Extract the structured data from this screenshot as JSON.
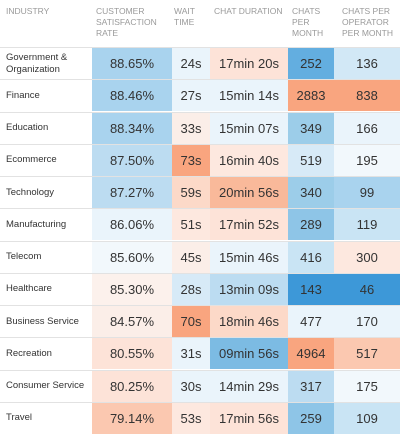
{
  "chart_data": {
    "type": "table",
    "columns": [
      "INDUSTRY",
      "CUSTOMER SATISFACTION RATE",
      "WAIT TIME",
      "CHAT DURATION",
      "CHATS PER MONTH",
      "CHATS PER OPERATOR PER MONTH"
    ],
    "rows": [
      {
        "industry": "Government & Organization",
        "satisfaction": "88.65%",
        "wait": "24s",
        "duration": "17min 20s",
        "chats": "252",
        "per_operator": "136"
      },
      {
        "industry": "Finance",
        "satisfaction": "88.46%",
        "wait": "27s",
        "duration": "15min 14s",
        "chats": "2883",
        "per_operator": "838"
      },
      {
        "industry": "Education",
        "satisfaction": "88.34%",
        "wait": "33s",
        "duration": "15min 07s",
        "chats": "349",
        "per_operator": "166"
      },
      {
        "industry": "Ecommerce",
        "satisfaction": "87.50%",
        "wait": "73s",
        "duration": "16min 40s",
        "chats": "519",
        "per_operator": "195"
      },
      {
        "industry": "Technology",
        "satisfaction": "87.27%",
        "wait": "59s",
        "duration": "20min 56s",
        "chats": "340",
        "per_operator": "99"
      },
      {
        "industry": "Manufacturing",
        "satisfaction": "86.06%",
        "wait": "51s",
        "duration": "17min 52s",
        "chats": "289",
        "per_operator": "119"
      },
      {
        "industry": "Telecom",
        "satisfaction": "85.60%",
        "wait": "45s",
        "duration": "15min 46s",
        "chats": "416",
        "per_operator": "300"
      },
      {
        "industry": "Healthcare",
        "satisfaction": "85.30%",
        "wait": "28s",
        "duration": "13min 09s",
        "chats": "143",
        "per_operator": "46"
      },
      {
        "industry": "Business Service",
        "satisfaction": "84.57%",
        "wait": "70s",
        "duration": "18min 46s",
        "chats": "477",
        "per_operator": "170"
      },
      {
        "industry": "Recreation",
        "satisfaction": "80.55%",
        "wait": "31s",
        "duration": "09min 56s",
        "chats": "4964",
        "per_operator": "517"
      },
      {
        "industry": "Consumer Service",
        "satisfaction": "80.25%",
        "wait": "30s",
        "duration": "14min 29s",
        "chats": "317",
        "per_operator": "175"
      },
      {
        "industry": "Travel",
        "satisfaction": "79.14%",
        "wait": "53s",
        "duration": "17min 56s",
        "chats": "259",
        "per_operator": "109"
      }
    ],
    "cell_colors": [
      [
        "#a9d3ee",
        "#eaf4fb",
        "#fde3d8",
        "#63aee0",
        "#d2e8f6"
      ],
      [
        "#a9d3ee",
        "#eaf4fb",
        "#eaf4fb",
        "#f9a57f",
        "#f9a57f"
      ],
      [
        "#a9d3ee",
        "#fbeee8",
        "#eaf4fb",
        "#9ccde9",
        "#eaf4fb"
      ],
      [
        "#bcdcf1",
        "#f9a57f",
        "#fde8df",
        "#d7eaf7",
        "#f2f8fc"
      ],
      [
        "#bcdcf1",
        "#fcd9c8",
        "#f9b99a",
        "#9ccde9",
        "#a9d3ee"
      ],
      [
        "#eaf4fb",
        "#fde8df",
        "#fde3d8",
        "#8ec5e7",
        "#c9e4f4"
      ],
      [
        "#f2f8fc",
        "#fbeee8",
        "#eaf4fb",
        "#c9e4f4",
        "#fde8df"
      ],
      [
        "#fcf1ec",
        "#d7eaf7",
        "#bcdcf1",
        "#3d98d8",
        "#3d98d8"
      ],
      [
        "#fbeee8",
        "#f9a57f",
        "#fcd9c8",
        "#eaf4fb",
        "#eaf4fb"
      ],
      [
        "#fde3d8",
        "#eaf4fb",
        "#7cbbe3",
        "#f9a57f",
        "#fbc8b0"
      ],
      [
        "#fde3d8",
        "#eaf4fb",
        "#eaf4fb",
        "#bcdcf1",
        "#f2f8fc"
      ],
      [
        "#fbc8b0",
        "#fde8df",
        "#fde3d8",
        "#8ec5e7",
        "#c9e4f4"
      ]
    ]
  }
}
